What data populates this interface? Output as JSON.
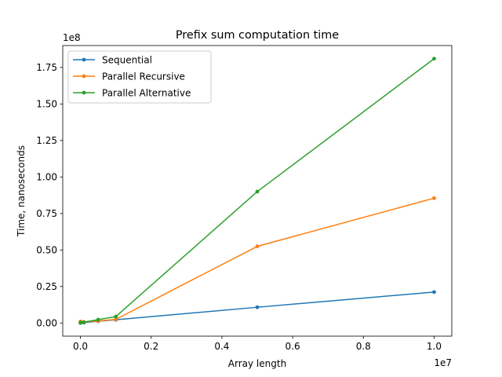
{
  "chart_data": {
    "type": "line",
    "title": "Prefix sum computation time",
    "xlabel": "Array length",
    "ylabel": "Time, nanoseconds",
    "x_multiplier": "1e7",
    "y_multiplier": "1e8",
    "xlim": [
      -500000,
      10500000
    ],
    "ylim": [
      -9000000,
      190000000
    ],
    "x_ticks": [
      0,
      2000000,
      4000000,
      6000000,
      8000000,
      10000000
    ],
    "x_tick_labels": [
      "0.0",
      "0.2",
      "0.4",
      "0.6",
      "0.8",
      "1.0"
    ],
    "y_ticks": [
      0,
      25000000,
      50000000,
      75000000,
      100000000,
      125000000,
      150000000,
      175000000
    ],
    "y_tick_labels": [
      "0.00",
      "0.25",
      "0.50",
      "0.75",
      "1.00",
      "1.25",
      "1.50",
      "1.75"
    ],
    "grid": false,
    "legend_position": "top-left",
    "x": [
      1000,
      10000,
      100000,
      500000,
      1000000,
      5000000,
      10000000
    ],
    "series": [
      {
        "name": "Sequential",
        "color": "#1f77b4",
        "values": [
          20000,
          200000,
          300000,
          1200000,
          2200000,
          10800000,
          21200000
        ]
      },
      {
        "name": "Parallel Recursive",
        "color": "#ff7f0e",
        "values": [
          1000000,
          1000000,
          600000,
          1400000,
          2500000,
          52500000,
          85500000
        ]
      },
      {
        "name": "Parallel Alternative",
        "color": "#2ca02c",
        "values": [
          100000,
          200000,
          600000,
          2300000,
          4400000,
          90000000,
          181000000
        ]
      }
    ]
  }
}
